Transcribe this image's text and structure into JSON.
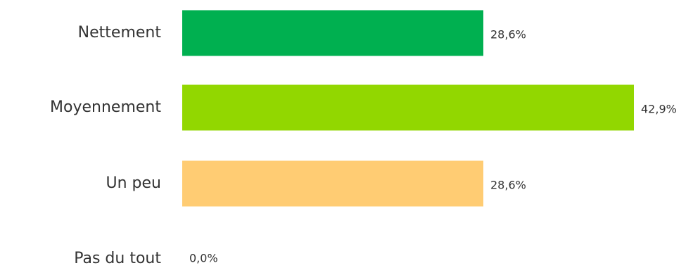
{
  "chart_data": {
    "type": "bar",
    "orientation": "horizontal",
    "categories": [
      "Nettement",
      "Moyennement",
      "Un peu",
      "Pas du tout"
    ],
    "values": [
      28.6,
      42.9,
      28.6,
      0.0
    ],
    "value_labels": [
      "28,6%",
      "42,9%",
      "28,6%",
      "0,0%"
    ],
    "colors": [
      "#00B050",
      "#92D700",
      "#FFCC73",
      "#FFCC73"
    ],
    "title": "",
    "xlabel": "",
    "ylabel": "",
    "xlim": [
      0,
      42.9
    ],
    "grid": false,
    "legend": "none"
  }
}
